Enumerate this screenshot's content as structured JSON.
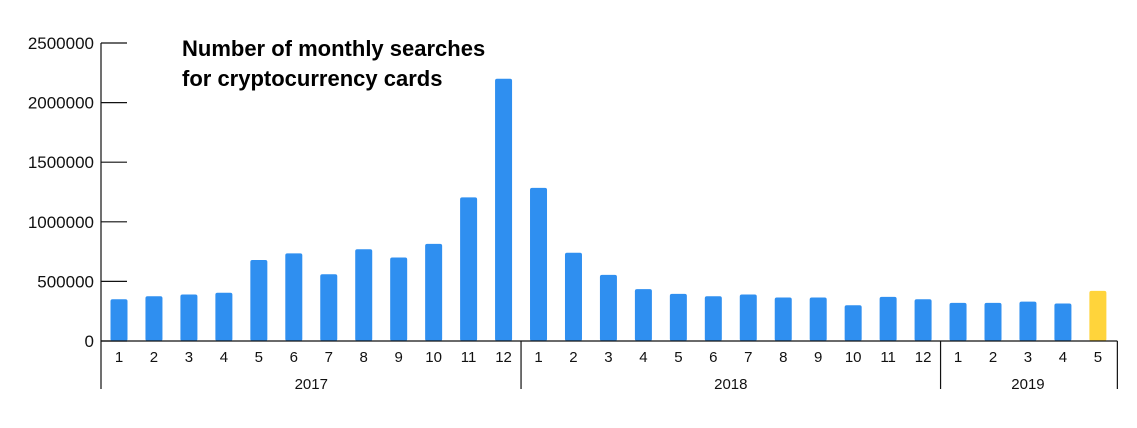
{
  "chart_data": {
    "type": "bar",
    "title": [
      "Number of monthly searches",
      "for cryptocurrency cards"
    ],
    "xlabel": "",
    "ylabel": "",
    "ylim": [
      0,
      2500000
    ],
    "yticks": [
      "0",
      "500000",
      "1000000",
      "1500000",
      "2000000",
      "2500000"
    ],
    "grid": false,
    "categories": [
      "1",
      "2",
      "3",
      "4",
      "5",
      "6",
      "7",
      "8",
      "9",
      "10",
      "11",
      "12",
      "1",
      "2",
      "3",
      "4",
      "5",
      "6",
      "7",
      "8",
      "9",
      "10",
      "11",
      "12",
      "1",
      "2",
      "3",
      "4",
      "5"
    ],
    "values": [
      350000,
      375000,
      390000,
      405000,
      680000,
      735000,
      560000,
      770000,
      700000,
      815000,
      1205000,
      2200000,
      1285000,
      740000,
      555000,
      435000,
      395000,
      375000,
      390000,
      365000,
      365000,
      300000,
      370000,
      350000,
      320000,
      320000,
      330000,
      315000,
      420000
    ],
    "groups": [
      {
        "label": "2017",
        "count": 12
      },
      {
        "label": "2018",
        "count": 12
      },
      {
        "label": "2019",
        "count": 5
      }
    ],
    "highlight_index": 28,
    "colors": {
      "bar": "#2f8ff0",
      "highlight": "#ffd43b",
      "axis": "#111111"
    }
  }
}
